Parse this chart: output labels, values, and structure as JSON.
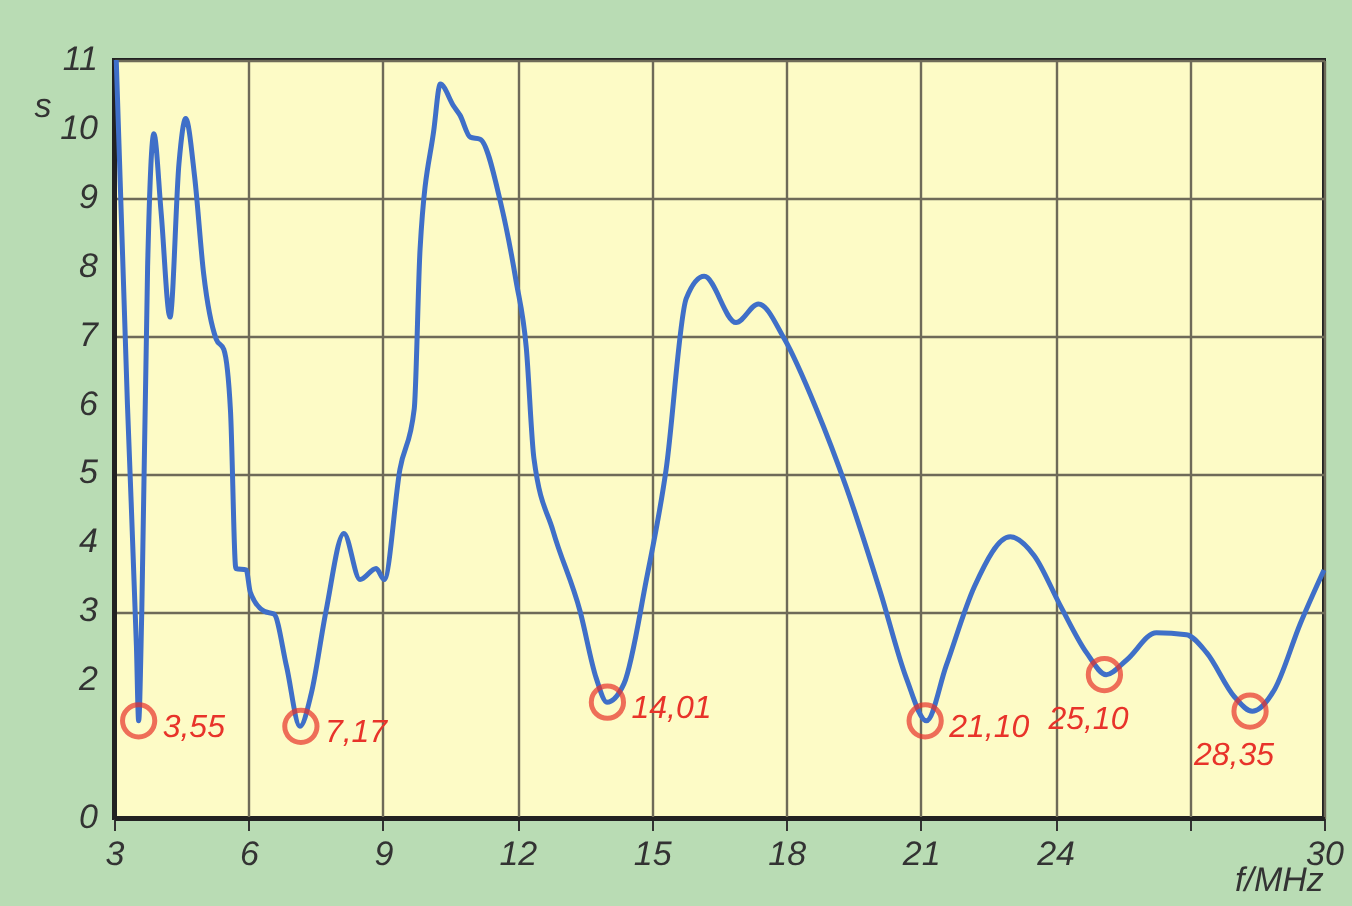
{
  "chart_data": {
    "type": "line",
    "xlabel": "f/MHz",
    "ylabel": "s",
    "x": [
      3.05,
      3.3,
      3.5,
      3.55,
      3.62,
      3.75,
      3.89,
      4.05,
      4.25,
      4.45,
      4.6,
      4.8,
      5.0,
      5.28,
      5.45,
      5.6,
      5.72,
      5.95,
      6.04,
      6.35,
      6.57,
      6.85,
      7.15,
      7.4,
      7.73,
      8.13,
      8.49,
      8.85,
      9.03,
      9.38,
      9.7,
      9.83,
      10.14,
      10.28,
      10.58,
      10.72,
      10.95,
      11.17,
      11.62,
      11.97,
      12.2,
      12.37,
      12.8,
      13.4,
      13.76,
      14.0,
      14.38,
      14.88,
      15.32,
      15.77,
      16.17,
      16.88,
      17.38,
      17.96,
      18.67,
      19.34,
      20.1,
      20.68,
      21.13,
      21.57,
      22.2,
      23.0,
      23.53,
      24.11,
      24.7,
      25.14,
      25.59,
      26.26,
      26.93,
      27.38,
      28.0,
      28.4,
      28.9,
      29.47,
      30.0
    ],
    "series": [
      {
        "color": "#3f6fc8",
        "values": [
          11,
          6,
          2.5,
          1.41,
          3,
          8,
          9.93,
          8.8,
          7.27,
          9.5,
          10.15,
          9.3,
          7.9,
          6.95,
          6.8,
          5.9,
          3.62,
          3.6,
          3.28,
          3.0,
          2.96,
          2.2,
          1.33,
          1.8,
          3.0,
          4.13,
          3.46,
          3.62,
          3.46,
          5.06,
          5.94,
          8.26,
          10.0,
          10.65,
          10.33,
          10.2,
          9.88,
          9.85,
          8.95,
          7.8,
          6.82,
          5.22,
          4.16,
          3.0,
          2.03,
          1.68,
          1.95,
          3.46,
          5.06,
          7.54,
          7.86,
          7.19,
          7.46,
          6.95,
          5.94,
          4.8,
          3.28,
          2.03,
          1.41,
          2.21,
          3.36,
          4.08,
          3.81,
          3.09,
          2.4,
          2.08,
          2.29,
          2.69,
          2.66,
          2.4,
          1.76,
          1.55,
          1.87,
          2.82,
          3.6
        ]
      }
    ],
    "xlim": [
      3,
      30
    ],
    "xticks": [
      3,
      6,
      9,
      12,
      15,
      18,
      21,
      24,
      {
        "value": 27,
        "label": null
      },
      30
    ],
    "ylim": [
      0,
      11
    ],
    "yticks": [
      0,
      2,
      3,
      4,
      5,
      6,
      7,
      8,
      9,
      10,
      11
    ],
    "grid": true,
    "marker": "none",
    "line_style": "solid",
    "annotations": [
      {
        "text": "3,55",
        "x": 3.55,
        "y": 1.41
      },
      {
        "text": "7,17",
        "x": 7.17,
        "y": 1.33
      },
      {
        "text": "14,01",
        "x": 14.01,
        "y": 1.68
      },
      {
        "text": "21,10",
        "x": 21.1,
        "y": 1.41
      },
      {
        "text": "25,10",
        "x": 25.1,
        "y": 2.08
      },
      {
        "text": "28,35",
        "x": 28.35,
        "y": 1.55
      }
    ]
  }
}
